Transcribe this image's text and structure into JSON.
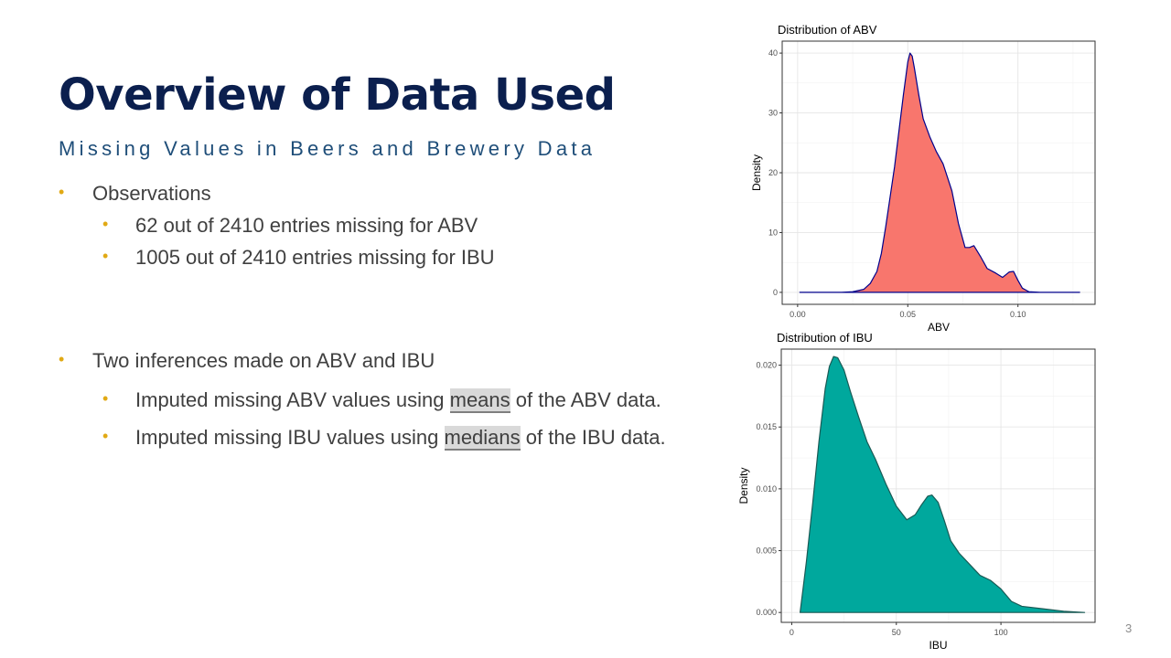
{
  "slide": {
    "title": "Overview of Data Used",
    "subtitle": "Missing Values in Beers and Brewery Data",
    "page_number": "3"
  },
  "bullets": {
    "observations": "Observations",
    "abv_missing": "62 out of 2410 entries missing for ABV",
    "ibu_missing": "1005 out of 2410 entries missing for IBU",
    "inferences": "Two inferences made on ABV and IBU",
    "abv_impute": {
      "pre": "Imputed missing ABV values using ",
      "key": "means",
      "post": " of the ABV data."
    },
    "ibu_impute": {
      "pre": "Imputed missing IBU values using ",
      "key": "medians",
      "post": " of the IBU data."
    }
  },
  "chart_data": [
    {
      "type": "area",
      "title": "Distribution of ABV",
      "xlabel": "ABV",
      "ylabel": "Density",
      "xlim": [
        -0.007,
        0.135
      ],
      "ylim": [
        -2,
        42
      ],
      "xticks": [
        0.0,
        0.05,
        0.1
      ],
      "xtick_labels": [
        "0.00",
        "0.05",
        "0.10"
      ],
      "yticks": [
        0,
        10,
        20,
        30,
        40
      ],
      "ytick_labels": [
        "0",
        "10",
        "20",
        "30",
        "40"
      ],
      "grid": true,
      "fill_color": "#f8766d",
      "line_color": "#00008b",
      "x": [
        0.001,
        0.02,
        0.025,
        0.03,
        0.033,
        0.036,
        0.038,
        0.04,
        0.042,
        0.044,
        0.046,
        0.048,
        0.05,
        0.051,
        0.052,
        0.053,
        0.055,
        0.057,
        0.06,
        0.063,
        0.066,
        0.07,
        0.073,
        0.076,
        0.078,
        0.08,
        0.083,
        0.086,
        0.09,
        0.093,
        0.096,
        0.098,
        0.1,
        0.102,
        0.105,
        0.11,
        0.128
      ],
      "y": [
        0,
        0,
        0.1,
        0.5,
        1.5,
        3.5,
        6.5,
        11,
        16,
        21,
        27,
        33,
        38.5,
        40,
        39.5,
        37.5,
        33,
        29,
        26,
        23.5,
        21.5,
        17,
        11.5,
        7.5,
        7.5,
        7.8,
        6,
        4,
        3.2,
        2.5,
        3.4,
        3.5,
        2,
        0.7,
        0.1,
        0,
        0
      ]
    },
    {
      "type": "area",
      "title": "Distribution of IBU",
      "xlabel": "IBU",
      "ylabel": "Density",
      "xlim": [
        -5,
        145
      ],
      "ylim": [
        -0.0008,
        0.0213
      ],
      "xticks": [
        0,
        50,
        100
      ],
      "xtick_labels": [
        "0",
        "50",
        "100"
      ],
      "yticks": [
        0,
        0.005,
        0.01,
        0.015,
        0.02
      ],
      "ytick_labels": [
        "0.000",
        "0.005",
        "0.010",
        "0.015",
        "0.020"
      ],
      "grid": true,
      "fill_color": "#00a89d",
      "line_color": "#1a5a55",
      "x": [
        4,
        7,
        10,
        13,
        16,
        18,
        20,
        22,
        25,
        28,
        32,
        36,
        40,
        45,
        50,
        55,
        59,
        62,
        65,
        67,
        70,
        73,
        76,
        80,
        85,
        90,
        95,
        100,
        105,
        110,
        120,
        130,
        140
      ],
      "y": [
        0,
        0.0041,
        0.0088,
        0.0138,
        0.0181,
        0.0199,
        0.0207,
        0.0206,
        0.0196,
        0.0179,
        0.0158,
        0.0138,
        0.0124,
        0.0104,
        0.0086,
        0.0075,
        0.0079,
        0.0087,
        0.0094,
        0.0095,
        0.0089,
        0.0074,
        0.0058,
        0.0048,
        0.0039,
        0.003,
        0.0026,
        0.0019,
        0.0009,
        0.0005,
        0.0003,
        0.0001,
        0
      ]
    }
  ]
}
